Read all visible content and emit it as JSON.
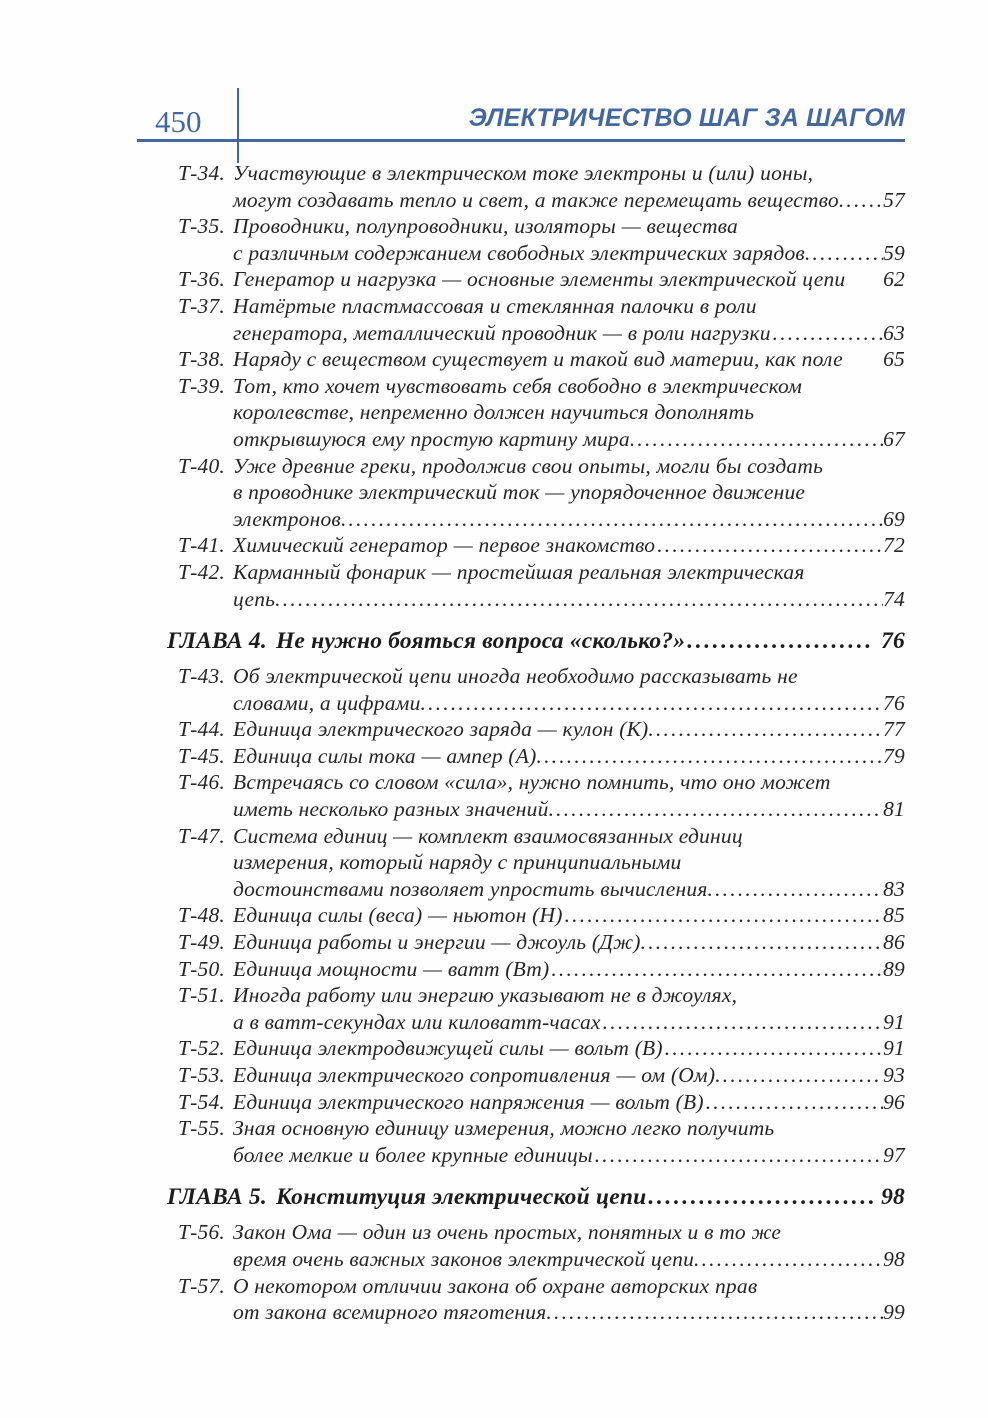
{
  "header": {
    "page_number": "450",
    "book_title": "ЭЛЕКТРИЧЕСТВО ШАГ ЗА ШАГОМ"
  },
  "colors": {
    "accent": "#44679e",
    "text": "#262626"
  },
  "leader_char": ".",
  "toc": [
    {
      "type": "entry",
      "label": "Т-34.",
      "lines": [
        "Участвующие в электрическом токе электроны и (или) ионы,",
        "могут создавать тепло и свет, а также перемещать вещество."
      ],
      "leader": true,
      "page": "57"
    },
    {
      "type": "entry",
      "label": "Т-35.",
      "lines": [
        "Проводники, полупроводники, изоляторы — вещества",
        "с различным содержанием свободных электрических зарядов."
      ],
      "leader": true,
      "page": "59"
    },
    {
      "type": "entry",
      "label": "Т-36.",
      "lines": [
        "Генератор и нагрузка — основные элементы электрической цепи"
      ],
      "leader": false,
      "page": "62"
    },
    {
      "type": "entry",
      "label": "Т-37.",
      "lines": [
        "Натёртые пластмассовая и стеклянная палочки в роли",
        "генератора, металлический проводник — в роли нагрузки"
      ],
      "leader": true,
      "page": "63"
    },
    {
      "type": "entry",
      "label": "Т-38.",
      "lines": [
        "Наряду с веществом существует и такой вид материи, как поле"
      ],
      "leader": false,
      "page": "65"
    },
    {
      "type": "entry",
      "label": "Т-39.",
      "lines": [
        "Тот, кто хочет чувствовать себя свободно в электрическом",
        "королевстве, непременно должен научиться дополнять",
        "открывшуюся ему простую картину мира."
      ],
      "leader": true,
      "page": "67"
    },
    {
      "type": "entry",
      "label": "Т-40.",
      "lines": [
        "Уже древние греки, продолжив свои опыты, могли бы создать",
        "в проводнике электрический ток — упорядоченное движение",
        "электронов."
      ],
      "leader": true,
      "page": "69"
    },
    {
      "type": "entry",
      "label": "Т-41.",
      "lines": [
        "Химический генератор — первое знакомство"
      ],
      "leader": true,
      "page": "72"
    },
    {
      "type": "entry",
      "label": "Т-42.",
      "lines": [
        "Карманный фонарик — простейшая реальная электрическая",
        "цепь."
      ],
      "leader": true,
      "page": "74"
    },
    {
      "type": "chapter",
      "label": "ГЛАВА 4.",
      "title": "Не нужно бояться вопроса «сколько?»",
      "leader": true,
      "page": "76"
    },
    {
      "type": "entry",
      "label": "Т-43.",
      "lines": [
        "Об электрической цепи иногда необходимо рассказывать не",
        "словами, а цифрами."
      ],
      "leader": true,
      "page": "76"
    },
    {
      "type": "entry",
      "label": "Т-44.",
      "lines": [
        "Единица электрического заряда — кулон (К)."
      ],
      "leader": true,
      "page": "77"
    },
    {
      "type": "entry",
      "label": "Т-45.",
      "lines": [
        "Единица силы тока — ампер (А)."
      ],
      "leader": true,
      "page": "79"
    },
    {
      "type": "entry",
      "label": "Т-46.",
      "lines": [
        "Встречаясь со словом «сила», нужно помнить, что оно может",
        "иметь несколько разных значений."
      ],
      "leader": true,
      "page": "81"
    },
    {
      "type": "entry",
      "label": "Т-47.",
      "lines": [
        "Система единиц — комплект взаимосвязанных единиц",
        "измерения, который наряду с принципиальными",
        "достоинствами позволяет упростить вычисления."
      ],
      "leader": true,
      "page": "83"
    },
    {
      "type": "entry",
      "label": "Т-48.",
      "lines": [
        "Единица силы (веса) — ньютон (Н)"
      ],
      "leader": true,
      "page": "85"
    },
    {
      "type": "entry",
      "label": "Т-49.",
      "lines": [
        "Единица работы и энергии — джоуль (Дж)."
      ],
      "leader": true,
      "page": "86"
    },
    {
      "type": "entry",
      "label": "Т-50.",
      "lines": [
        "Единица мощности — ватт (Вт)"
      ],
      "leader": true,
      "page": "89"
    },
    {
      "type": "entry",
      "label": "Т-51.",
      "lines": [
        "Иногда работу или энергию указывают не в джоулях,",
        "а в ватт-секундах или киловатт-часах"
      ],
      "leader": true,
      "page": "91"
    },
    {
      "type": "entry",
      "label": "Т-52.",
      "lines": [
        "Единица электродвижущей силы — вольт (В)"
      ],
      "leader": true,
      "page": "91"
    },
    {
      "type": "entry",
      "label": "Т-53.",
      "lines": [
        "Единица электрического сопротивления — ом (Ом)."
      ],
      "leader": true,
      "page": "93"
    },
    {
      "type": "entry",
      "label": "Т-54.",
      "lines": [
        "Единица электрического напряжения — вольт (В)"
      ],
      "leader": true,
      "page": "96"
    },
    {
      "type": "entry",
      "label": "Т-55.",
      "lines": [
        "Зная основную единицу измерения, можно легко получить",
        "более мелкие и более крупные единицы"
      ],
      "leader": true,
      "page": "97"
    },
    {
      "type": "chapter",
      "label": "ГЛАВА 5.",
      "title": "Конституция электрической цепи",
      "leader": true,
      "page": "98"
    },
    {
      "type": "entry",
      "label": "Т-56.",
      "lines": [
        "Закон Ома — один из очень простых, понятных и в то же",
        "время очень важных законов электрической цепи."
      ],
      "leader": true,
      "page": "98"
    },
    {
      "type": "entry",
      "label": "Т-57.",
      "lines": [
        "О некотором отличии закона об охране авторских прав",
        "от закона всемирного тяготения."
      ],
      "leader": true,
      "page": "99"
    }
  ]
}
